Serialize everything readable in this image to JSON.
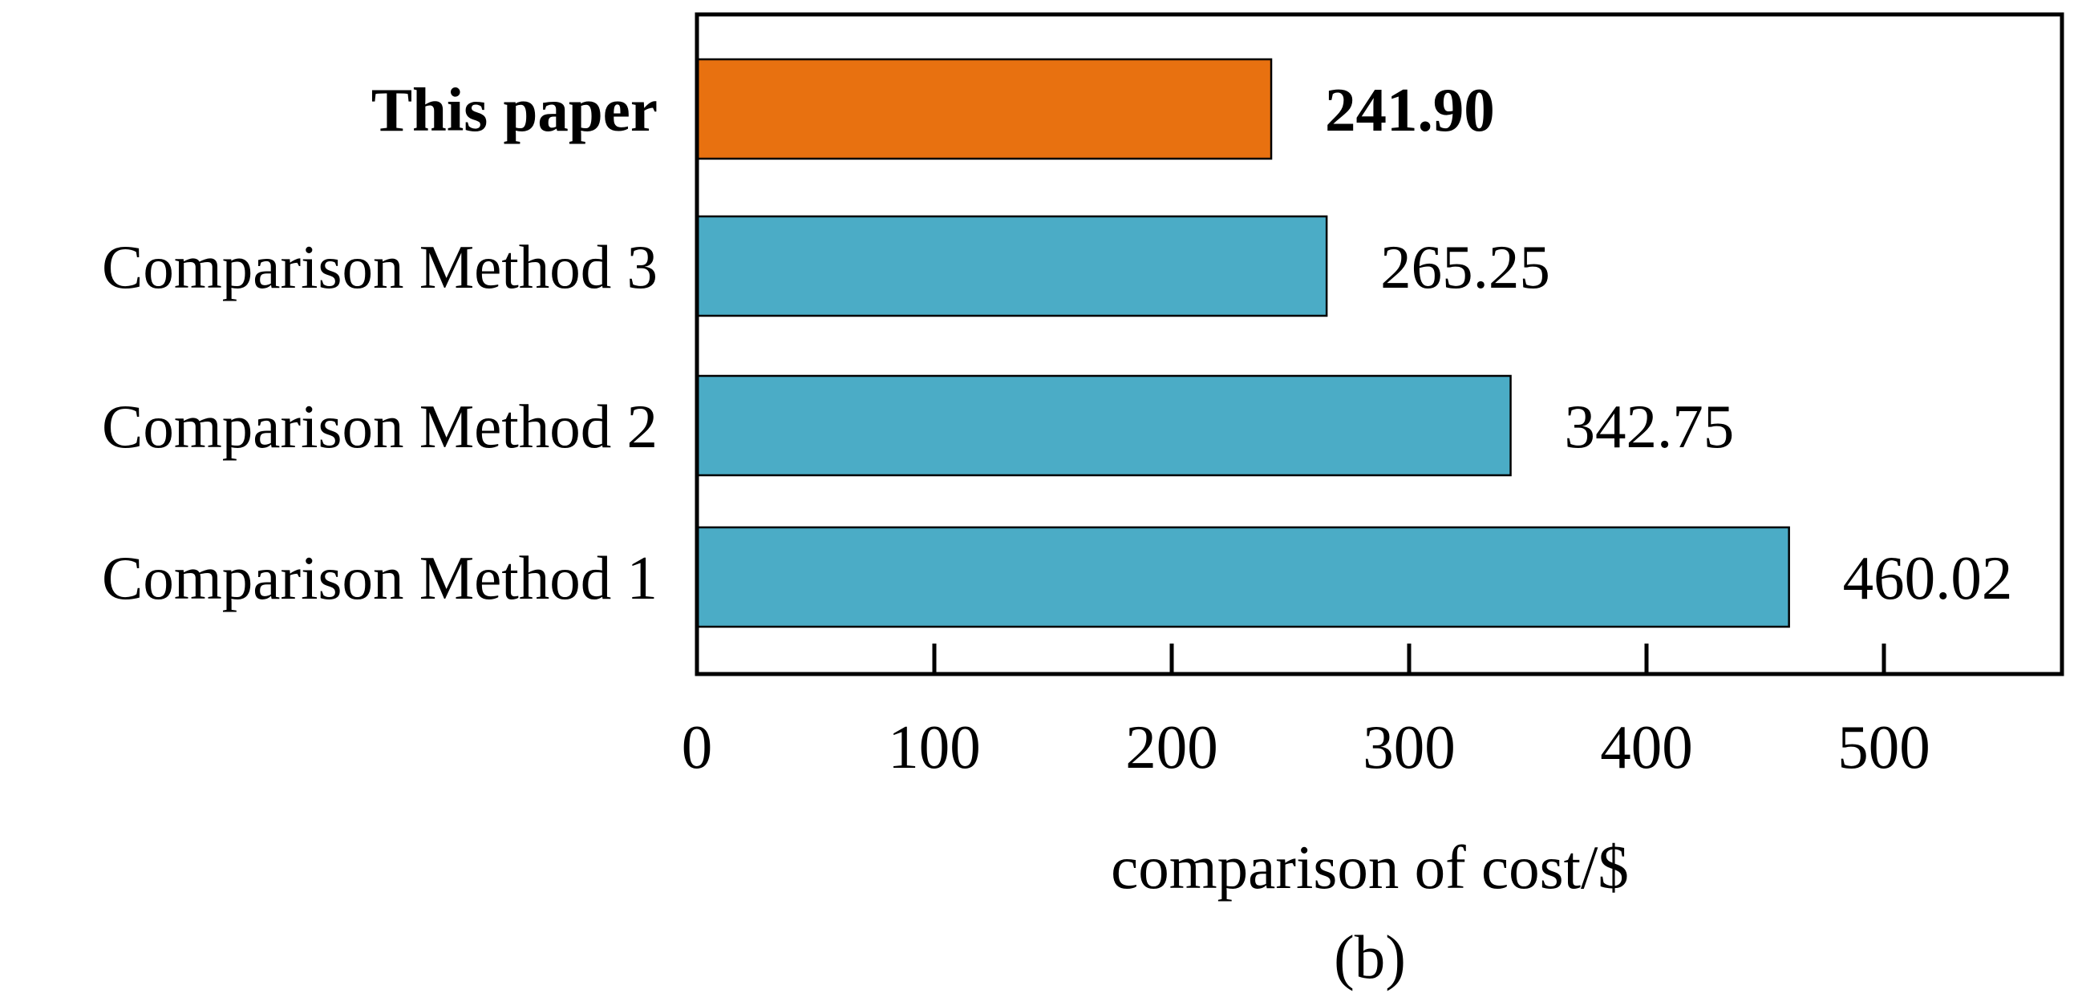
{
  "chart_data": {
    "type": "bar",
    "orientation": "horizontal",
    "categories": [
      "This paper",
      "Comparison Method 3",
      "Comparison Method 2",
      "Comparison Method 1"
    ],
    "values": [
      241.9,
      265.25,
      342.75,
      460.02
    ],
    "value_labels": [
      "241.90",
      "265.25",
      "342.75",
      "460.02"
    ],
    "highlight_index": 0,
    "xlabel": "comparison of cost/$",
    "xlim": [
      0,
      575
    ],
    "xticks": [
      0,
      100,
      200,
      300,
      400,
      500
    ],
    "xtick_labels": [
      "0",
      "100",
      "200",
      "300",
      "400",
      "500"
    ],
    "subfigure_label": "(b)",
    "grid": false,
    "colors": {
      "highlight": "#E87110",
      "default": "#4BACC6",
      "axis": "#000000",
      "bar_edge": "#000000"
    }
  }
}
